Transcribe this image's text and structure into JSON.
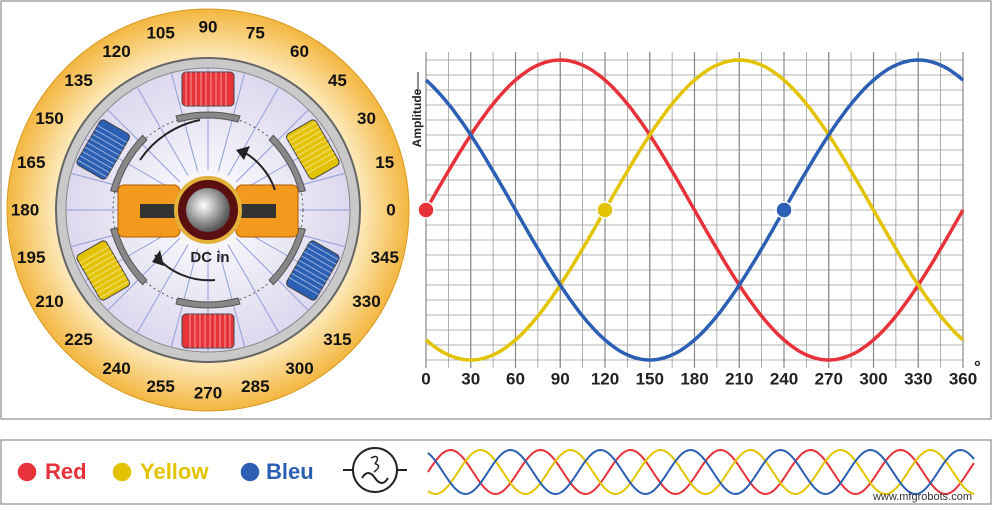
{
  "dial": {
    "labels": [
      0,
      15,
      30,
      45,
      60,
      75,
      90,
      105,
      120,
      135,
      150,
      165,
      180,
      195,
      210,
      225,
      240,
      255,
      270,
      285,
      300,
      315,
      330,
      345
    ],
    "center_label": "DC in"
  },
  "graph": {
    "y_axis_label": "Amplitude",
    "x_ticks": [
      0,
      30,
      60,
      90,
      120,
      150,
      180,
      210,
      240,
      270,
      300,
      330,
      360
    ],
    "degree_symbol": "°"
  },
  "legend": [
    {
      "name": "Red",
      "color": "#e8323a"
    },
    {
      "name": "Yellow",
      "color": "#e3c300"
    },
    {
      "name": "Bleu",
      "color": "#2b5fb3"
    }
  ],
  "watermark": "www.mfgrobots.com"
}
